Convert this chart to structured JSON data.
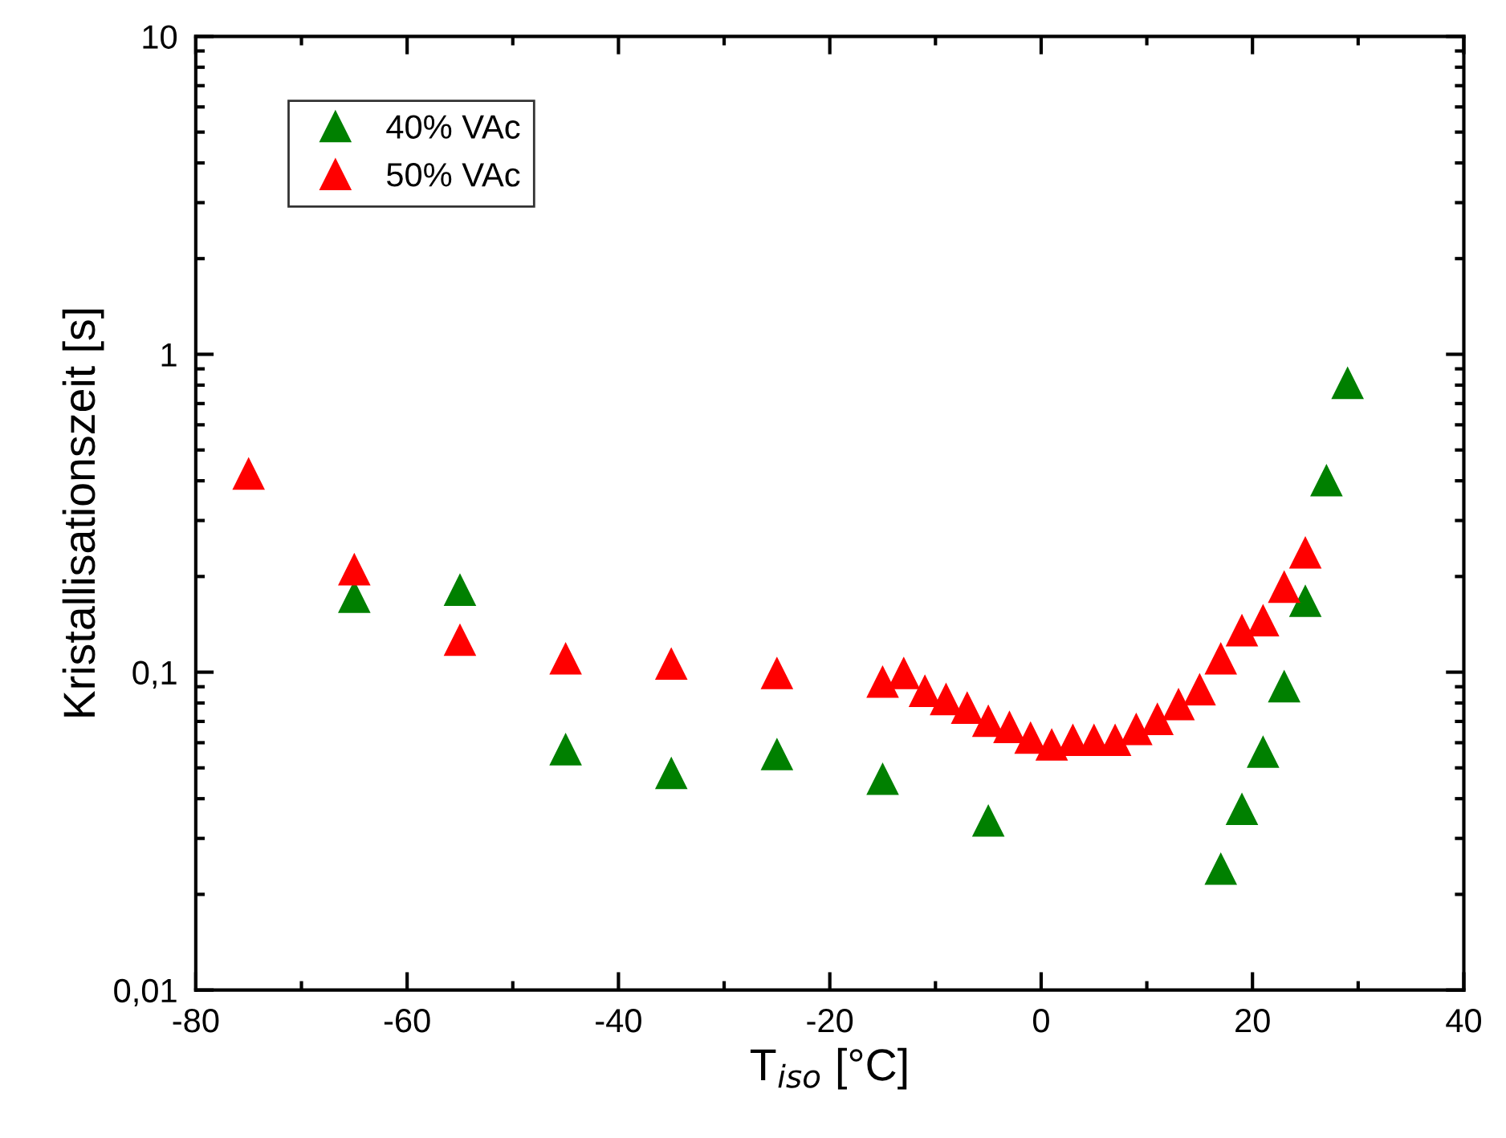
{
  "chart_data": {
    "type": "scatter",
    "xlabel": "T$_{iso}$ [°C]",
    "ylabel": "Kristallisationszeit [s]",
    "log": "y",
    "xlim": [
      -80,
      40
    ],
    "xticks": [
      -80,
      -60,
      -40,
      -20,
      0,
      20,
      40
    ],
    "ylim": [
      0.01,
      10
    ],
    "yticks": [
      {
        "value": 0.01,
        "label": "0,01"
      },
      {
        "value": 0.1,
        "label": "0,1"
      },
      {
        "value": 1,
        "label": "1"
      },
      {
        "value": 10,
        "label": "10"
      }
    ],
    "grid": false,
    "legend": "top left",
    "marker": "triangle",
    "series": [
      {
        "name": "40% VAc",
        "color": "#008000",
        "x": [
          -65,
          -55,
          -45,
          -35,
          -25,
          -15,
          -5,
          17,
          19,
          21,
          23,
          25,
          27,
          29
        ],
        "values": [
          0.172,
          0.181,
          0.057,
          0.048,
          0.055,
          0.046,
          0.034,
          0.024,
          0.037,
          0.056,
          0.09,
          0.167,
          0.4,
          0.81
        ]
      },
      {
        "name": "50% VAc",
        "color": "#ff0000",
        "x": [
          -75,
          -65,
          -55,
          -45,
          -35,
          -25,
          -15,
          -13,
          -11,
          -9,
          -7,
          -5,
          -3,
          -1,
          1,
          3,
          5,
          7,
          9,
          11,
          13,
          15,
          17,
          19,
          21,
          23,
          25
        ],
        "values": [
          0.42,
          0.21,
          0.126,
          0.11,
          0.106,
          0.099,
          0.093,
          0.099,
          0.087,
          0.082,
          0.077,
          0.07,
          0.067,
          0.062,
          0.059,
          0.061,
          0.061,
          0.061,
          0.066,
          0.071,
          0.079,
          0.088,
          0.11,
          0.135,
          0.145,
          0.185,
          0.237
        ]
      }
    ]
  }
}
